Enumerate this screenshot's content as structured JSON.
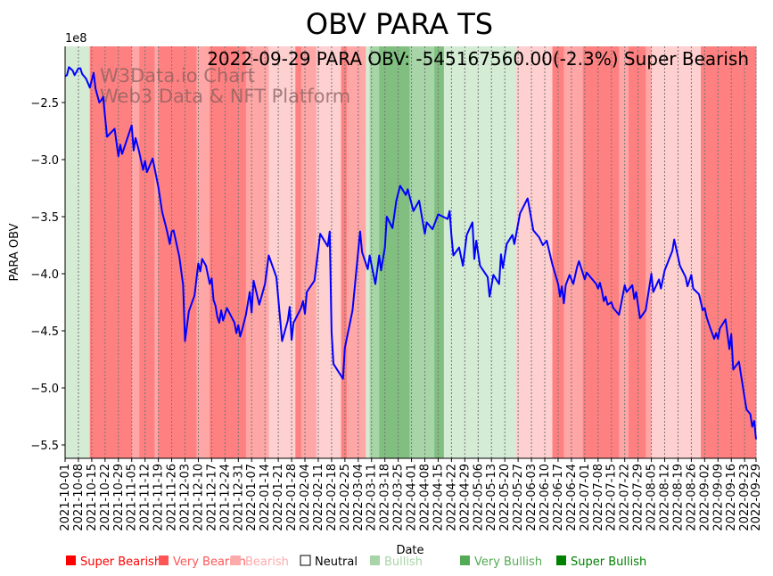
{
  "chart_data": {
    "type": "line",
    "title": "OBV PARA TS",
    "annotation": "2022-09-29 PARA OBV: -545167560.00(-2.3%) Super Bearish",
    "watermark": [
      "W3Data.io Chart",
      "Web3 Data & NFT Platform"
    ],
    "xlabel": "Date",
    "ylabel": "PARA OBV",
    "y_offset_label": "1e8",
    "y_unit_multiplier": 100000000,
    "start_date": "2021-10-01",
    "xlim_days": [
      0,
      363
    ],
    "ylim": [
      -5.617,
      -2.008
    ],
    "y_ticks": [
      -2.5,
      -3.0,
      -3.5,
      -4.0,
      -4.5,
      -5.0,
      -5.5
    ],
    "y_tick_labels": [
      "−2.5",
      "−3.0",
      "−3.5",
      "−4.0",
      "−4.5",
      "−5.0",
      "−5.5"
    ],
    "x_tick_days": [
      0,
      7,
      14,
      21,
      28,
      35,
      42,
      49,
      56,
      63,
      70,
      77,
      84,
      91,
      98,
      105,
      112,
      119,
      126,
      133,
      140,
      147,
      154,
      161,
      168,
      175,
      182,
      189,
      196,
      203,
      210,
      217,
      224,
      231,
      238,
      245,
      252,
      259,
      266,
      273,
      280,
      287,
      294,
      301,
      308,
      315,
      322,
      329,
      336,
      343,
      350,
      357,
      363
    ],
    "x_tick_labels": [
      "2021-10-01",
      "2021-10-08",
      "2021-10-15",
      "2021-10-22",
      "2021-10-29",
      "2021-11-05",
      "2021-11-12",
      "2021-11-19",
      "2021-11-26",
      "2021-12-03",
      "2021-12-10",
      "2021-12-17",
      "2021-12-24",
      "2021-12-31",
      "2022-01-07",
      "2022-01-14",
      "2022-01-21",
      "2022-01-28",
      "2022-02-04",
      "2022-02-11",
      "2022-02-18",
      "2022-02-25",
      "2022-03-04",
      "2022-03-11",
      "2022-03-18",
      "2022-03-25",
      "2022-04-01",
      "2022-04-08",
      "2022-04-15",
      "2022-04-22",
      "2022-04-29",
      "2022-05-06",
      "2022-05-13",
      "2022-05-20",
      "2022-05-27",
      "2022-06-03",
      "2022-06-10",
      "2022-06-17",
      "2022-06-24",
      "2022-07-01",
      "2022-07-08",
      "2022-07-15",
      "2022-07-22",
      "2022-07-29",
      "2022-08-05",
      "2022-08-12",
      "2022-08-19",
      "2022-08-26",
      "2022-09-02",
      "2022-09-09",
      "2022-09-16",
      "2022-09-23",
      "2022-09-29"
    ],
    "grid": "x-dotted",
    "series": [
      {
        "name": "OBV",
        "color": "#0000ff",
        "points": [
          [
            0,
            -2.27
          ],
          [
            1,
            -2.26
          ],
          [
            2,
            -2.19
          ],
          [
            4,
            -2.22
          ],
          [
            5,
            -2.26
          ],
          [
            7,
            -2.2
          ],
          [
            8,
            -2.2
          ],
          [
            9,
            -2.25
          ],
          [
            11,
            -2.29
          ],
          [
            13,
            -2.37
          ],
          [
            15,
            -2.24
          ],
          [
            16,
            -2.38
          ],
          [
            18,
            -2.5
          ],
          [
            19,
            -2.48
          ],
          [
            20,
            -2.45
          ],
          [
            22,
            -2.8
          ],
          [
            26,
            -2.73
          ],
          [
            28,
            -2.97
          ],
          [
            29,
            -2.87
          ],
          [
            30,
            -2.95
          ],
          [
            32,
            -2.85
          ],
          [
            35,
            -2.7
          ],
          [
            36,
            -2.92
          ],
          [
            37,
            -2.81
          ],
          [
            38,
            -2.87
          ],
          [
            39,
            -2.94
          ],
          [
            41,
            -3.09
          ],
          [
            42,
            -3.01
          ],
          [
            43,
            -3.11
          ],
          [
            46,
            -2.99
          ],
          [
            49,
            -3.24
          ],
          [
            51,
            -3.46
          ],
          [
            53,
            -3.59
          ],
          [
            54,
            -3.66
          ],
          [
            55,
            -3.74
          ],
          [
            56,
            -3.63
          ],
          [
            57,
            -3.62
          ],
          [
            60,
            -3.85
          ],
          [
            62,
            -4.1
          ],
          [
            63,
            -4.59
          ],
          [
            65,
            -4.33
          ],
          [
            68,
            -4.19
          ],
          [
            70,
            -3.91
          ],
          [
            71,
            -3.98
          ],
          [
            72,
            -3.87
          ],
          [
            74,
            -3.93
          ],
          [
            76,
            -4.09
          ],
          [
            77,
            -4.04
          ],
          [
            78,
            -4.23
          ],
          [
            79,
            -4.28
          ],
          [
            80,
            -4.38
          ],
          [
            81,
            -4.43
          ],
          [
            82,
            -4.32
          ],
          [
            83,
            -4.41
          ],
          [
            85,
            -4.3
          ],
          [
            89,
            -4.43
          ],
          [
            90,
            -4.52
          ],
          [
            91,
            -4.45
          ],
          [
            92,
            -4.55
          ],
          [
            93,
            -4.49
          ],
          [
            95,
            -4.36
          ],
          [
            97,
            -4.16
          ],
          [
            98,
            -4.34
          ],
          [
            99,
            -4.06
          ],
          [
            102,
            -4.27
          ],
          [
            105,
            -4.09
          ],
          [
            107,
            -3.84
          ],
          [
            111,
            -4.03
          ],
          [
            114,
            -4.59
          ],
          [
            117,
            -4.41
          ],
          [
            118,
            -4.29
          ],
          [
            119,
            -4.58
          ],
          [
            120,
            -4.43
          ],
          [
            124,
            -4.3
          ],
          [
            125,
            -4.24
          ],
          [
            126,
            -4.35
          ],
          [
            127,
            -4.16
          ],
          [
            131,
            -4.06
          ],
          [
            134,
            -3.65
          ],
          [
            138,
            -3.76
          ],
          [
            139,
            -3.63
          ],
          [
            140,
            -4.51
          ],
          [
            141,
            -4.79
          ],
          [
            146,
            -4.92
          ],
          [
            147,
            -4.65
          ],
          [
            151,
            -4.32
          ],
          [
            155,
            -3.63
          ],
          [
            156,
            -3.81
          ],
          [
            159,
            -3.96
          ],
          [
            160,
            -3.84
          ],
          [
            163,
            -4.09
          ],
          [
            165,
            -3.84
          ],
          [
            166,
            -3.97
          ],
          [
            168,
            -3.77
          ],
          [
            169,
            -3.5
          ],
          [
            172,
            -3.6
          ],
          [
            174,
            -3.36
          ],
          [
            176,
            -3.23
          ],
          [
            179,
            -3.31
          ],
          [
            180,
            -3.26
          ],
          [
            183,
            -3.45
          ],
          [
            186,
            -3.36
          ],
          [
            189,
            -3.65
          ],
          [
            190,
            -3.55
          ],
          [
            193,
            -3.61
          ],
          [
            196,
            -3.48
          ],
          [
            201,
            -3.52
          ],
          [
            202,
            -3.45
          ],
          [
            203,
            -3.67
          ],
          [
            204,
            -3.84
          ],
          [
            207,
            -3.77
          ],
          [
            209,
            -3.93
          ],
          [
            211,
            -3.66
          ],
          [
            214,
            -3.55
          ],
          [
            215,
            -3.87
          ],
          [
            216,
            -3.71
          ],
          [
            218,
            -3.93
          ],
          [
            222,
            -4.03
          ],
          [
            223,
            -4.2
          ],
          [
            225,
            -4.01
          ],
          [
            228,
            -4.09
          ],
          [
            229,
            -3.83
          ],
          [
            230,
            -3.95
          ],
          [
            232,
            -3.74
          ],
          [
            235,
            -3.66
          ],
          [
            236,
            -3.74
          ],
          [
            239,
            -3.47
          ],
          [
            243,
            -3.34
          ],
          [
            246,
            -3.62
          ],
          [
            249,
            -3.68
          ],
          [
            251,
            -3.75
          ],
          [
            253,
            -3.71
          ],
          [
            256,
            -3.92
          ],
          [
            259,
            -4.09
          ],
          [
            260,
            -4.2
          ],
          [
            261,
            -4.11
          ],
          [
            262,
            -4.26
          ],
          [
            263,
            -4.1
          ],
          [
            265,
            -4.01
          ],
          [
            267,
            -4.09
          ],
          [
            269,
            -3.94
          ],
          [
            270,
            -3.89
          ],
          [
            273,
            -4.05
          ],
          [
            274,
            -3.99
          ],
          [
            279,
            -4.09
          ],
          [
            280,
            -4.13
          ],
          [
            281,
            -4.08
          ],
          [
            282,
            -4.15
          ],
          [
            283,
            -4.24
          ],
          [
            284,
            -4.2
          ],
          [
            285,
            -4.27
          ],
          [
            287,
            -4.25
          ],
          [
            288,
            -4.3
          ],
          [
            291,
            -4.36
          ],
          [
            294,
            -4.1
          ],
          [
            295,
            -4.16
          ],
          [
            298,
            -4.1
          ],
          [
            299,
            -4.22
          ],
          [
            300,
            -4.16
          ],
          [
            302,
            -4.39
          ],
          [
            305,
            -4.32
          ],
          [
            308,
            -4.0
          ],
          [
            309,
            -4.16
          ],
          [
            312,
            -4.05
          ],
          [
            313,
            -4.13
          ],
          [
            315,
            -3.97
          ],
          [
            319,
            -3.8
          ],
          [
            320,
            -3.7
          ],
          [
            323,
            -3.93
          ],
          [
            326,
            -4.03
          ],
          [
            327,
            -4.11
          ],
          [
            329,
            -4.01
          ],
          [
            330,
            -4.13
          ],
          [
            333,
            -4.18
          ],
          [
            335,
            -4.32
          ],
          [
            336,
            -4.3
          ],
          [
            337,
            -4.38
          ],
          [
            339,
            -4.48
          ],
          [
            341,
            -4.57
          ],
          [
            342,
            -4.52
          ],
          [
            343,
            -4.57
          ],
          [
            344,
            -4.48
          ],
          [
            347,
            -4.4
          ],
          [
            349,
            -4.66
          ],
          [
            350,
            -4.53
          ],
          [
            351,
            -4.84
          ],
          [
            354,
            -4.77
          ],
          [
            357,
            -5.09
          ],
          [
            358,
            -5.19
          ],
          [
            360,
            -5.23
          ],
          [
            361,
            -5.34
          ],
          [
            362,
            -5.29
          ],
          [
            363,
            -5.45
          ]
        ]
      }
    ],
    "sentiment_colors": {
      "super_bearish": "#ff8080",
      "very_bearish": "#ffa6a6",
      "bearish": "#ffd0d0",
      "neutral": "#ffffff",
      "bullish": "#d4ebd4",
      "very_bullish": "#a8d5a8",
      "super_bullish": "#80bf80"
    },
    "sentiment_bands": [
      [
        0,
        13,
        "bullish"
      ],
      [
        13,
        35,
        "super_bearish"
      ],
      [
        35,
        39,
        "very_bearish"
      ],
      [
        39,
        47,
        "super_bearish"
      ],
      [
        47,
        49,
        "very_bearish"
      ],
      [
        49,
        69,
        "super_bearish"
      ],
      [
        69,
        76,
        "very_bearish"
      ],
      [
        76,
        95,
        "super_bearish"
      ],
      [
        95,
        107,
        "very_bearish"
      ],
      [
        107,
        121,
        "bearish"
      ],
      [
        121,
        124,
        "super_bearish"
      ],
      [
        124,
        132,
        "very_bearish"
      ],
      [
        132,
        145,
        "bearish"
      ],
      [
        145,
        148,
        "super_bearish"
      ],
      [
        148,
        158,
        "very_bearish"
      ],
      [
        158,
        160,
        "bullish"
      ],
      [
        160,
        165,
        "very_bullish"
      ],
      [
        165,
        181,
        "super_bullish"
      ],
      [
        181,
        194,
        "very_bullish"
      ],
      [
        194,
        199,
        "super_bullish"
      ],
      [
        199,
        237,
        "bullish"
      ],
      [
        237,
        256,
        "bearish"
      ],
      [
        256,
        262,
        "super_bearish"
      ],
      [
        262,
        272,
        "very_bearish"
      ],
      [
        272,
        291,
        "super_bearish"
      ],
      [
        291,
        296,
        "very_bearish"
      ],
      [
        296,
        305,
        "super_bearish"
      ],
      [
        305,
        308,
        "very_bearish"
      ],
      [
        308,
        334,
        "bearish"
      ],
      [
        334,
        363,
        "super_bearish"
      ]
    ],
    "legend": {
      "placement": "bottom",
      "items": [
        {
          "label": "Super Bearish",
          "color": "#ff0000",
          "text_color": "#ff0000"
        },
        {
          "label": "Very Bearish",
          "color": "#ff5555",
          "text_color": "#ff5555"
        },
        {
          "label": "Bearish",
          "color": "#ffaaaa",
          "text_color": "#ffaaaa"
        },
        {
          "label": "Neutral",
          "color": "#ffffff",
          "text_color": "#000000"
        },
        {
          "label": "Bullish",
          "color": "#a8d5a8",
          "text_color": "#a8d5a8"
        },
        {
          "label": "Very Bullish",
          "color": "#55aa55",
          "text_color": "#55aa55"
        },
        {
          "label": "Super Bullish",
          "color": "#008000",
          "text_color": "#008000"
        }
      ]
    }
  }
}
